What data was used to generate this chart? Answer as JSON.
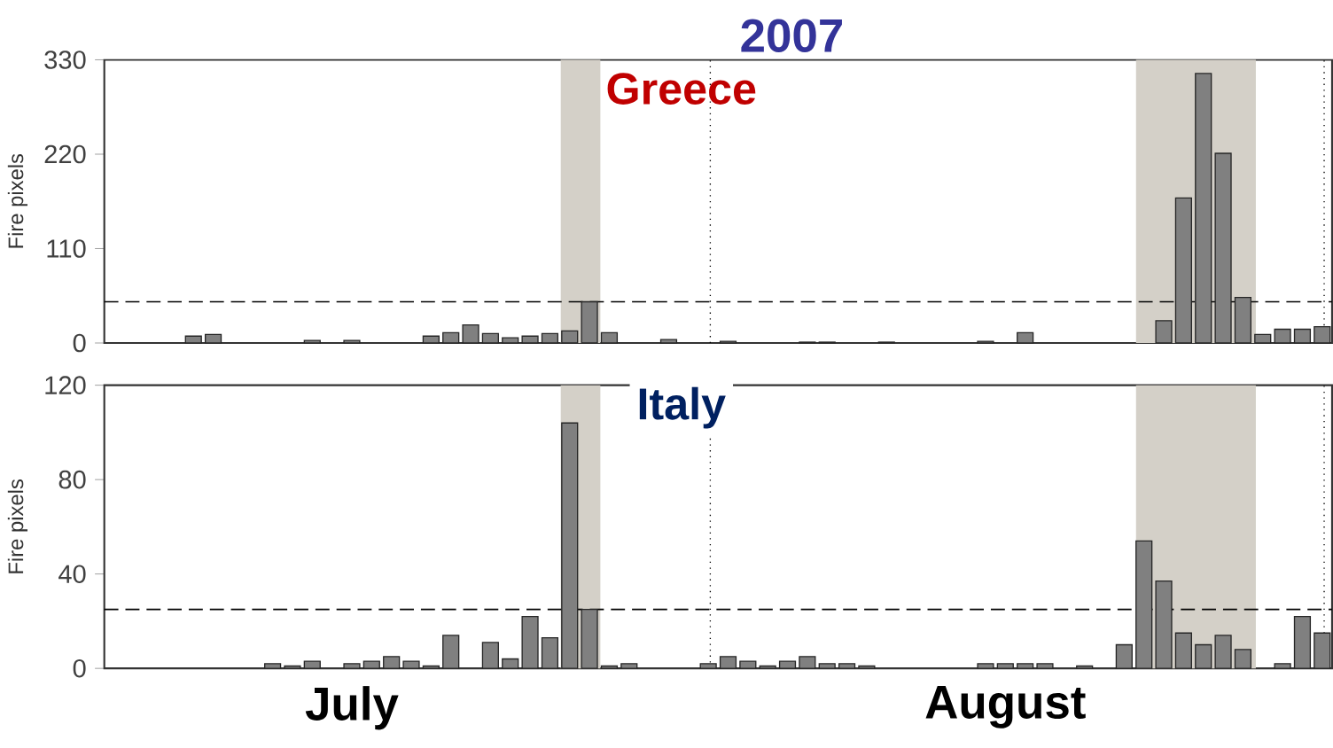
{
  "chart_data": [
    {
      "type": "bar",
      "title": "Greece",
      "ylabel": "Fire pixels",
      "annotations": [
        "2007"
      ],
      "color": "#808080",
      "categories": [
        null,
        null,
        null,
        null,
        null,
        null,
        null,
        null,
        null,
        null,
        null,
        null,
        null,
        null,
        null,
        null,
        null,
        null,
        null,
        null,
        null,
        null,
        null,
        null,
        null,
        null,
        null,
        null,
        null,
        null,
        null,
        null,
        null,
        null,
        null,
        null,
        null,
        null,
        null,
        null,
        null,
        null,
        null,
        null,
        null,
        null,
        null,
        null,
        null,
        null,
        null,
        null,
        null,
        null,
        null,
        null,
        null,
        null,
        null,
        null,
        null,
        null
      ],
      "values": [
        null,
        null,
        null,
        null,
        8,
        10,
        null,
        null,
        null,
        null,
        3,
        null,
        3,
        null,
        null,
        null,
        8,
        12,
        21,
        11,
        6,
        8,
        11,
        14,
        48,
        12,
        null,
        null,
        4,
        null,
        null,
        2,
        null,
        null,
        null,
        1,
        1,
        null,
        null,
        1,
        null,
        null,
        null,
        null,
        2,
        null,
        12,
        null,
        null,
        null,
        null,
        null,
        null,
        26,
        169,
        314,
        221,
        53,
        10,
        16,
        16,
        19
      ],
      "ylim": [
        0,
        330
      ],
      "yticks": [
        0,
        110,
        220,
        330
      ],
      "tick_labels": "y",
      "ref_lines": [
        {
          "axis": "y",
          "value": 48,
          "line_style": "dashed",
          "color": "#000000"
        }
      ]
    },
    {
      "type": "bar",
      "title": "Italy",
      "ylabel": "Fire pixels",
      "color": "#808080",
      "categories": [
        null,
        null,
        null,
        null,
        null,
        null,
        null,
        null,
        null,
        null,
        null,
        null,
        "July",
        null,
        null,
        null,
        null,
        null,
        null,
        null,
        null,
        null,
        null,
        null,
        null,
        null,
        null,
        null,
        null,
        null,
        null,
        null,
        null,
        null,
        null,
        null,
        null,
        null,
        null,
        null,
        null,
        null,
        null,
        null,
        null,
        "August",
        null,
        null,
        null,
        null,
        null,
        null,
        null,
        null,
        null,
        null,
        null,
        null,
        null,
        null,
        null,
        null
      ],
      "values": [
        null,
        null,
        null,
        null,
        null,
        null,
        null,
        null,
        2,
        1,
        3,
        null,
        2,
        3,
        5,
        3,
        1,
        14,
        null,
        11,
        4,
        22,
        13,
        104,
        25,
        1,
        2,
        null,
        null,
        null,
        2,
        5,
        3,
        1,
        3,
        5,
        2,
        2,
        1,
        null,
        null,
        null,
        null,
        null,
        2,
        2,
        2,
        2,
        null,
        1,
        null,
        10,
        54,
        37,
        15,
        10,
        14,
        8,
        null,
        2,
        22,
        15
      ],
      "ylim": [
        0,
        120
      ],
      "yticks": [
        0,
        40,
        80,
        120
      ],
      "ref_lines": [
        {
          "axis": "y",
          "value": 25,
          "line_style": "dashed",
          "color": "#000000"
        }
      ]
    }
  ]
}
